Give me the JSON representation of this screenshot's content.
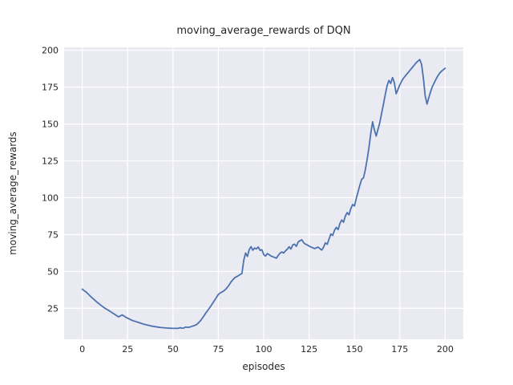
{
  "chart_data": {
    "type": "line",
    "title": "moving_average_rewards of DQN",
    "xlabel": "episodes",
    "ylabel": "moving_average_rewards",
    "xlim": [
      -10,
      210
    ],
    "ylim": [
      4,
      202
    ],
    "xticks": [
      0,
      25,
      50,
      75,
      100,
      125,
      150,
      175,
      200
    ],
    "yticks": [
      25,
      50,
      75,
      100,
      125,
      150,
      175,
      200
    ],
    "grid": true,
    "legend": false,
    "styles": {
      "figure_background": "#ffffff",
      "axes_background": "#eaeaf2",
      "grid_color": "#ffffff",
      "text_color": "#262626",
      "line_color": "#4c72b0"
    },
    "series": [
      {
        "name": "moving_average_rewards",
        "color": "#4c72b0",
        "points": [
          [
            0,
            38.0
          ],
          [
            1,
            37.0
          ],
          [
            2,
            36.2
          ],
          [
            3,
            35.0
          ],
          [
            4,
            33.8
          ],
          [
            5,
            32.6
          ],
          [
            6,
            31.5
          ],
          [
            7,
            30.4
          ],
          [
            8,
            29.3
          ],
          [
            9,
            28.3
          ],
          [
            10,
            27.3
          ],
          [
            11,
            26.4
          ],
          [
            12,
            25.5
          ],
          [
            13,
            24.7
          ],
          [
            14,
            24.0
          ],
          [
            15,
            23.2
          ],
          [
            16,
            22.4
          ],
          [
            17,
            21.6
          ],
          [
            18,
            20.8
          ],
          [
            19,
            20.0
          ],
          [
            20,
            19.2
          ],
          [
            21,
            19.9
          ],
          [
            22,
            20.5
          ],
          [
            23,
            19.8
          ],
          [
            24,
            18.9
          ],
          [
            25,
            18.3
          ],
          [
            26,
            17.7
          ],
          [
            27,
            17.1
          ],
          [
            28,
            16.6
          ],
          [
            29,
            16.2
          ],
          [
            30,
            15.8
          ],
          [
            31,
            15.4
          ],
          [
            32,
            15.0
          ],
          [
            33,
            14.6
          ],
          [
            34,
            14.2
          ],
          [
            35,
            13.9
          ],
          [
            36,
            13.6
          ],
          [
            37,
            13.3
          ],
          [
            38,
            13.0
          ],
          [
            39,
            12.8
          ],
          [
            40,
            12.6
          ],
          [
            41,
            12.4
          ],
          [
            42,
            12.2
          ],
          [
            43,
            12.0
          ],
          [
            44,
            11.9
          ],
          [
            45,
            11.8
          ],
          [
            46,
            11.7
          ],
          [
            47,
            11.6
          ],
          [
            48,
            11.5
          ],
          [
            49,
            11.5
          ],
          [
            50,
            11.4
          ],
          [
            51,
            11.4
          ],
          [
            52,
            11.4
          ],
          [
            53,
            11.5
          ],
          [
            54,
            11.9
          ],
          [
            55,
            11.5
          ],
          [
            56,
            11.7
          ],
          [
            57,
            12.3
          ],
          [
            58,
            12.1
          ],
          [
            59,
            12.2
          ],
          [
            60,
            12.6
          ],
          [
            61,
            13.0
          ],
          [
            62,
            13.4
          ],
          [
            63,
            14.0
          ],
          [
            64,
            15.1
          ],
          [
            65,
            16.4
          ],
          [
            66,
            18.0
          ],
          [
            67,
            19.8
          ],
          [
            68,
            21.7
          ],
          [
            69,
            23.3
          ],
          [
            70,
            25.0
          ],
          [
            71,
            26.8
          ],
          [
            72,
            28.7
          ],
          [
            73,
            30.6
          ],
          [
            74,
            32.5
          ],
          [
            75,
            34.4
          ],
          [
            76,
            35.4
          ],
          [
            77,
            36.1
          ],
          [
            78,
            36.8
          ],
          [
            79,
            37.9
          ],
          [
            80,
            39.3
          ],
          [
            81,
            41.0
          ],
          [
            82,
            42.9
          ],
          [
            83,
            44.4
          ],
          [
            84,
            45.7
          ],
          [
            85,
            46.4
          ],
          [
            86,
            47.1
          ],
          [
            87,
            47.9
          ],
          [
            88,
            48.6
          ],
          [
            89,
            57.5
          ],
          [
            90,
            62.5
          ],
          [
            91,
            60.2
          ],
          [
            92,
            64.8
          ],
          [
            93,
            66.8
          ],
          [
            94,
            64.4
          ],
          [
            95,
            65.9
          ],
          [
            96,
            65.3
          ],
          [
            97,
            66.6
          ],
          [
            98,
            64.3
          ],
          [
            99,
            64.7
          ],
          [
            100,
            61.5
          ],
          [
            101,
            60.4
          ],
          [
            102,
            62.1
          ],
          [
            103,
            61.4
          ],
          [
            104,
            60.5
          ],
          [
            105,
            60.0
          ],
          [
            106,
            59.5
          ],
          [
            107,
            59.0
          ],
          [
            108,
            60.9
          ],
          [
            109,
            62.4
          ],
          [
            110,
            63.2
          ],
          [
            111,
            62.5
          ],
          [
            112,
            64.0
          ],
          [
            113,
            65.1
          ],
          [
            114,
            66.7
          ],
          [
            115,
            65.2
          ],
          [
            116,
            68.0
          ],
          [
            117,
            68.5
          ],
          [
            118,
            67.0
          ],
          [
            119,
            70.0
          ],
          [
            120,
            70.9
          ],
          [
            121,
            71.5
          ],
          [
            122,
            69.5
          ],
          [
            123,
            68.5
          ],
          [
            124,
            68.0
          ],
          [
            125,
            67.2
          ],
          [
            126,
            66.6
          ],
          [
            127,
            66.1
          ],
          [
            128,
            65.5
          ],
          [
            129,
            66.0
          ],
          [
            130,
            66.5
          ],
          [
            131,
            65.4
          ],
          [
            132,
            64.5
          ],
          [
            133,
            66.5
          ],
          [
            134,
            69.4
          ],
          [
            135,
            68.4
          ],
          [
            136,
            72.0
          ],
          [
            137,
            75.4
          ],
          [
            138,
            74.4
          ],
          [
            139,
            77.9
          ],
          [
            140,
            79.9
          ],
          [
            141,
            78.4
          ],
          [
            142,
            82.6
          ],
          [
            143,
            84.9
          ],
          [
            144,
            83.4
          ],
          [
            145,
            87.6
          ],
          [
            146,
            89.9
          ],
          [
            147,
            88.4
          ],
          [
            148,
            92.6
          ],
          [
            149,
            95.4
          ],
          [
            150,
            94.4
          ],
          [
            151,
            99.5
          ],
          [
            152,
            104.0
          ],
          [
            153,
            108.5
          ],
          [
            154,
            112.5
          ],
          [
            155,
            113.5
          ],
          [
            156,
            119.0
          ],
          [
            157,
            126.0
          ],
          [
            158,
            134.0
          ],
          [
            159,
            143.5
          ],
          [
            160,
            151.5
          ],
          [
            161,
            146.0
          ],
          [
            162,
            141.8
          ],
          [
            163,
            146.5
          ],
          [
            164,
            151.0
          ],
          [
            165,
            157.5
          ],
          [
            166,
            163.5
          ],
          [
            167,
            170.0
          ],
          [
            168,
            176.0
          ],
          [
            169,
            179.5
          ],
          [
            170,
            177.5
          ],
          [
            171,
            181.5
          ],
          [
            172,
            178.0
          ],
          [
            173,
            170.5
          ],
          [
            174,
            173.5
          ],
          [
            175,
            176.5
          ],
          [
            176,
            179.0
          ],
          [
            177,
            181.0
          ],
          [
            178,
            182.5
          ],
          [
            179,
            184.0
          ],
          [
            180,
            185.5
          ],
          [
            181,
            187.0
          ],
          [
            182,
            188.5
          ],
          [
            183,
            190.0
          ],
          [
            184,
            191.5
          ],
          [
            185,
            192.7
          ],
          [
            186,
            193.7
          ],
          [
            187,
            190.5
          ],
          [
            188,
            181.0
          ],
          [
            189,
            169.0
          ],
          [
            190,
            163.5
          ],
          [
            191,
            168.0
          ],
          [
            192,
            172.0
          ],
          [
            193,
            175.5
          ],
          [
            194,
            178.0
          ],
          [
            195,
            180.5
          ],
          [
            196,
            182.7
          ],
          [
            197,
            184.5
          ],
          [
            198,
            185.8
          ],
          [
            199,
            186.8
          ],
          [
            200,
            187.8
          ]
        ]
      }
    ]
  }
}
